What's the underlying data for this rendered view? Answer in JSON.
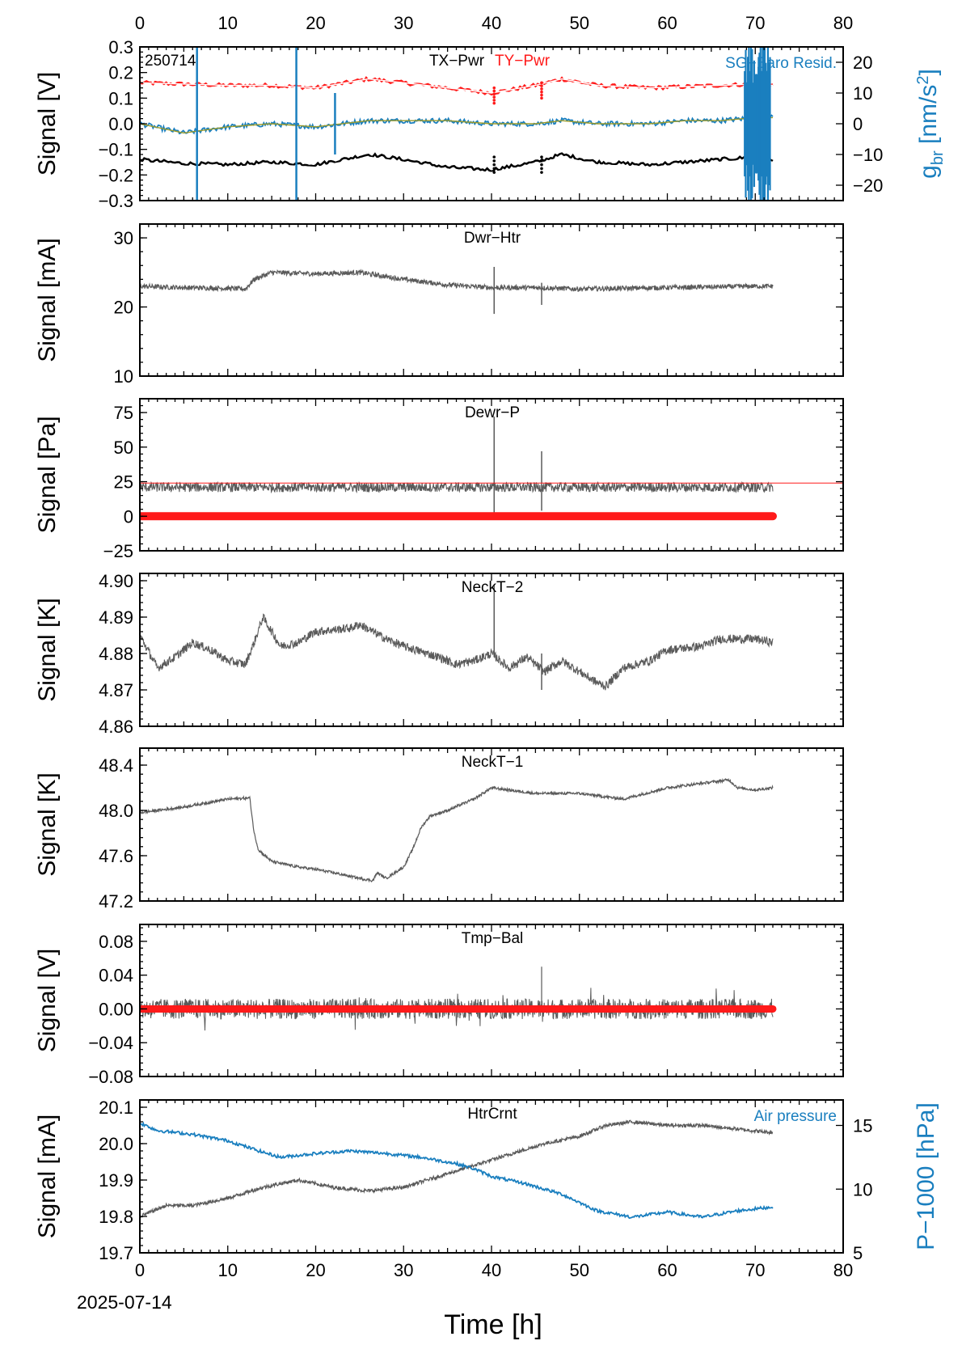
{
  "figure": {
    "date_label": "2025-07-14",
    "x_label": "Time [h]",
    "x_ticks": [
      0,
      10,
      20,
      30,
      40,
      50,
      60,
      70,
      80
    ]
  },
  "colors": {
    "gray": "#5a5a5a",
    "red": "#ff1a1a",
    "blue": "#1a7fbf",
    "black": "#000000",
    "olive": "#9a9a2a"
  },
  "chart_data": [
    {
      "type": "line",
      "title": "TX−Pwr",
      "title2": "TY−Pwr",
      "corner_label": "250714",
      "right_label": "SG−Baro Resid.",
      "ylabel": "Signal [V]",
      "y2label": "g_br [nm/s²]",
      "xlim": [
        0,
        80
      ],
      "ylim": [
        -0.3,
        0.3
      ],
      "y2lim": [
        -25,
        25
      ],
      "yticks": [
        -0.3,
        -0.2,
        -0.1,
        0.0,
        0.1,
        0.2,
        0.3
      ],
      "ytick_labels": [
        "−0.3",
        "−0.2",
        "−0.1",
        "0.0",
        "0.1",
        "0.2",
        "0.3"
      ],
      "y2ticks": [
        -20,
        -10,
        0,
        10,
        20
      ],
      "y2tick_labels": [
        "−20",
        "−10",
        "0",
        "10",
        "20"
      ],
      "series": [
        {
          "name": "TY−Pwr",
          "axis": "left",
          "x": [
            0,
            5,
            10,
            15,
            20,
            26,
            30,
            35,
            40,
            45,
            48,
            52,
            58,
            62,
            66,
            70,
            72
          ],
          "y": [
            0.16,
            0.155,
            0.15,
            0.15,
            0.14,
            0.175,
            0.16,
            0.14,
            0.12,
            0.15,
            0.175,
            0.15,
            0.14,
            0.145,
            0.15,
            0.155,
            0.15
          ]
        },
        {
          "name": "SG−Baro Resid.",
          "axis": "right",
          "x": [
            0,
            5,
            10,
            15,
            20,
            26,
            30,
            35,
            40,
            45,
            48,
            52,
            58,
            62,
            66,
            70,
            72
          ],
          "y": [
            0,
            -3,
            -1,
            0,
            -1,
            1,
            1,
            1,
            0,
            0,
            1,
            0,
            0,
            1,
            1,
            2,
            2
          ]
        },
        {
          "name": "TX−Pwr",
          "axis": "left",
          "x": [
            0,
            5,
            10,
            15,
            20,
            26,
            30,
            35,
            40,
            45,
            48,
            52,
            58,
            62,
            66,
            70,
            72
          ],
          "y": [
            -0.14,
            -0.155,
            -0.16,
            -0.15,
            -0.16,
            -0.12,
            -0.14,
            -0.17,
            -0.18,
            -0.15,
            -0.12,
            -0.15,
            -0.16,
            -0.15,
            -0.14,
            -0.13,
            -0.14
          ]
        }
      ]
    },
    {
      "type": "line",
      "title": "Dwr−Htr",
      "ylabel": "Signal [mA]",
      "xlim": [
        0,
        80
      ],
      "ylim": [
        10,
        32
      ],
      "yticks": [
        10,
        20,
        30
      ],
      "ytick_labels": [
        "10",
        "20",
        "30"
      ],
      "series": [
        {
          "x": [
            0,
            5,
            10,
            12,
            13,
            15,
            20,
            25,
            27,
            30,
            35,
            40,
            45,
            50,
            60,
            70,
            72
          ],
          "y": [
            23,
            22.8,
            22.7,
            22.6,
            24,
            25,
            24.8,
            25,
            24.6,
            24,
            23.2,
            22.8,
            22.8,
            22.6,
            22.8,
            23,
            23
          ]
        }
      ]
    },
    {
      "type": "line",
      "title": "Dewr−P",
      "ylabel": "Signal [Pa]",
      "xlim": [
        0,
        80
      ],
      "ylim": [
        -25,
        85
      ],
      "yticks": [
        -25,
        0,
        25,
        50,
        75
      ],
      "ytick_labels": [
        "−25",
        "0",
        "25",
        "50",
        "75"
      ],
      "threshold": 24,
      "series": [
        {
          "x": [
            0,
            72
          ],
          "y": [
            21,
            21
          ]
        },
        {
          "x": [
            0,
            72
          ],
          "y": [
            0,
            0
          ]
        }
      ]
    },
    {
      "type": "line",
      "title": "NeckT−2",
      "ylabel": "Signal [K]",
      "xlim": [
        0,
        80
      ],
      "ylim": [
        4.86,
        4.902
      ],
      "yticks": [
        4.86,
        4.87,
        4.88,
        4.89,
        4.9
      ],
      "ytick_labels": [
        "4.86",
        "4.87",
        "4.88",
        "4.89",
        "4.90"
      ],
      "series": [
        {
          "x": [
            0,
            2,
            4,
            6,
            8,
            10,
            12,
            13,
            14,
            16,
            18,
            20,
            24,
            25,
            28,
            30,
            34,
            36,
            38,
            40,
            42,
            44,
            46,
            48,
            50,
            52,
            53,
            55,
            58,
            60,
            64,
            66,
            70,
            72
          ],
          "y": [
            4.885,
            4.876,
            4.879,
            4.883,
            4.881,
            4.878,
            4.877,
            4.883,
            4.89,
            4.882,
            4.883,
            4.886,
            4.887,
            4.888,
            4.884,
            4.882,
            4.879,
            4.877,
            4.878,
            4.88,
            4.876,
            4.879,
            4.875,
            4.878,
            4.875,
            4.872,
            4.871,
            4.876,
            4.878,
            4.881,
            4.882,
            4.884,
            4.884,
            4.883
          ]
        }
      ]
    },
    {
      "type": "line",
      "title": "NeckT−1",
      "ylabel": "Signal [K]",
      "xlim": [
        0,
        80
      ],
      "ylim": [
        47.2,
        48.55
      ],
      "yticks": [
        47.2,
        47.6,
        48.0,
        48.4
      ],
      "ytick_labels": [
        "47.2",
        "47.6",
        "48.0",
        "48.4"
      ],
      "series": [
        {
          "x": [
            0,
            5,
            10,
            12.5,
            13,
            13.5,
            15,
            18,
            20,
            22,
            25,
            26.5,
            27,
            28,
            30,
            31,
            32,
            33,
            35,
            38,
            40,
            42,
            45,
            50,
            55,
            60,
            65,
            67,
            68,
            70,
            72
          ],
          "y": [
            47.98,
            48.03,
            48.1,
            48.11,
            47.8,
            47.65,
            47.55,
            47.5,
            47.48,
            47.45,
            47.4,
            47.38,
            47.45,
            47.4,
            47.5,
            47.65,
            47.85,
            47.95,
            48.0,
            48.1,
            48.2,
            48.18,
            48.15,
            48.15,
            48.1,
            48.2,
            48.25,
            48.27,
            48.2,
            48.18,
            48.2
          ]
        }
      ]
    },
    {
      "type": "line",
      "title": "Tmp−Bal",
      "ylabel": "Signal [V]",
      "xlim": [
        0,
        80
      ],
      "ylim": [
        -0.08,
        0.1
      ],
      "yticks": [
        -0.08,
        -0.04,
        0.0,
        0.04,
        0.08
      ],
      "ytick_labels": [
        "−0.08",
        "−0.04",
        "0.00",
        "0.04",
        "0.08"
      ],
      "series": [
        {
          "x": [
            0,
            72
          ],
          "y": [
            0.0,
            0.0
          ]
        },
        {
          "x": [
            0,
            72
          ],
          "y": [
            0.0,
            0.0
          ]
        }
      ]
    },
    {
      "type": "line",
      "title": "HtrCrnt",
      "right_label": "Air pressure",
      "ylabel": "Signal [mA]",
      "y2label": "P−1000 [hPa]",
      "xlim": [
        0,
        80
      ],
      "ylim": [
        19.7,
        20.12
      ],
      "y2lim": [
        5,
        17
      ],
      "yticks": [
        19.7,
        19.8,
        19.9,
        20.0,
        20.1
      ],
      "ytick_labels": [
        "19.7",
        "19.8",
        "19.9",
        "20.0",
        "20.1"
      ],
      "y2ticks": [
        5,
        10,
        15
      ],
      "y2tick_labels": [
        "5",
        "10",
        "15"
      ],
      "series": [
        {
          "name": "HtrCrnt",
          "axis": "left",
          "x": [
            0,
            3,
            6,
            10,
            14,
            18,
            22,
            26,
            30,
            34,
            38,
            42,
            46,
            50,
            53,
            56,
            60,
            64,
            68,
            72
          ],
          "y": [
            19.8,
            19.83,
            19.83,
            19.85,
            19.88,
            19.9,
            19.88,
            19.87,
            19.88,
            19.91,
            19.94,
            19.97,
            20.0,
            20.02,
            20.05,
            20.06,
            20.05,
            20.05,
            20.04,
            20.03
          ]
        },
        {
          "name": "Air pressure",
          "axis": "right",
          "x": [
            0,
            2,
            6,
            10,
            14,
            16,
            20,
            24,
            28,
            32,
            36,
            38,
            40,
            44,
            48,
            52,
            56,
            60,
            64,
            68,
            72
          ],
          "y": [
            15.2,
            14.6,
            14.3,
            13.8,
            12.9,
            12.5,
            12.8,
            13.0,
            12.8,
            12.5,
            12.0,
            11.6,
            11.0,
            10.4,
            9.6,
            8.3,
            7.8,
            8.2,
            7.8,
            8.3,
            8.6
          ]
        }
      ]
    }
  ]
}
